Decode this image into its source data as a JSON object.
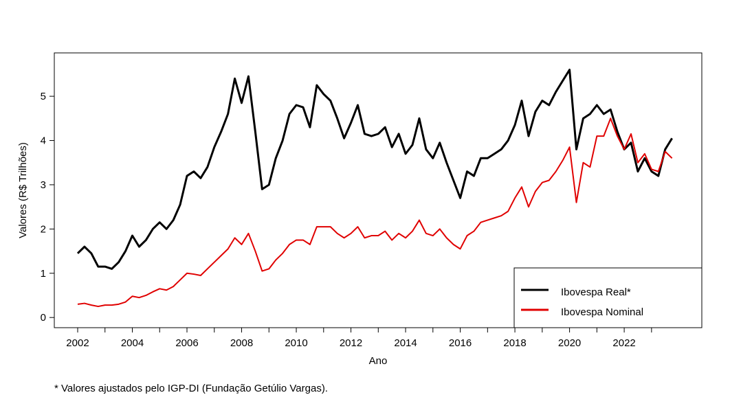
{
  "chart_data": {
    "type": "line",
    "x_label": "Ano",
    "y_label": "Valores (R$ Trilhões)",
    "footnote": "* Valores ajustados pelo IGP-DI (Fundação Getúlio Vargas).",
    "x": [
      2002,
      2002.25,
      2002.5,
      2002.75,
      2003,
      2003.25,
      2003.5,
      2003.75,
      2004,
      2004.25,
      2004.5,
      2004.75,
      2005,
      2005.25,
      2005.5,
      2005.75,
      2006,
      2006.25,
      2006.5,
      2006.75,
      2007,
      2007.25,
      2007.5,
      2007.75,
      2008,
      2008.25,
      2008.5,
      2008.75,
      2009,
      2009.25,
      2009.5,
      2009.75,
      2010,
      2010.25,
      2010.5,
      2010.75,
      2011,
      2011.25,
      2011.5,
      2011.75,
      2012,
      2012.25,
      2012.5,
      2012.75,
      2013,
      2013.25,
      2013.5,
      2013.75,
      2014,
      2014.25,
      2014.5,
      2014.75,
      2015,
      2015.25,
      2015.5,
      2015.75,
      2016,
      2016.25,
      2016.5,
      2016.75,
      2017,
      2017.25,
      2017.5,
      2017.75,
      2018,
      2018.25,
      2018.5,
      2018.75,
      2019,
      2019.25,
      2019.5,
      2019.75,
      2020,
      2020.25,
      2020.5,
      2020.75,
      2021,
      2021.25,
      2021.5,
      2021.75,
      2022,
      2022.25,
      2022.5,
      2022.75,
      2023,
      2023.25,
      2023.5,
      2023.75
    ],
    "series": [
      {
        "name": "Ibovespa Real*",
        "color": "#000000",
        "width": 3,
        "values": [
          1.45,
          1.6,
          1.45,
          1.15,
          1.15,
          1.1,
          1.25,
          1.5,
          1.85,
          1.6,
          1.75,
          2.0,
          2.15,
          2.0,
          2.2,
          2.55,
          3.2,
          3.3,
          3.15,
          3.4,
          3.85,
          4.2,
          4.6,
          5.4,
          4.85,
          5.45,
          4.2,
          2.9,
          3.0,
          3.6,
          4.0,
          4.6,
          4.8,
          4.75,
          4.3,
          5.25,
          5.05,
          4.9,
          4.5,
          4.05,
          4.4,
          4.8,
          4.15,
          4.1,
          4.15,
          4.3,
          3.85,
          4.15,
          3.7,
          3.9,
          4.5,
          3.8,
          3.6,
          3.95,
          3.5,
          3.1,
          2.7,
          3.3,
          3.2,
          3.6,
          3.6,
          3.7,
          3.8,
          4.0,
          4.35,
          4.9,
          4.1,
          4.65,
          4.9,
          4.8,
          5.1,
          5.35,
          5.6,
          3.8,
          4.5,
          4.6,
          4.8,
          4.6,
          4.7,
          4.2,
          3.8,
          3.95,
          3.3,
          3.6,
          3.3,
          3.2,
          3.8,
          4.05
        ]
      },
      {
        "name": "Ibovespa Nominal",
        "color": "#e00000",
        "width": 2,
        "values": [
          0.3,
          0.32,
          0.28,
          0.25,
          0.28,
          0.28,
          0.3,
          0.35,
          0.48,
          0.45,
          0.5,
          0.58,
          0.65,
          0.62,
          0.7,
          0.85,
          1.0,
          0.98,
          0.95,
          1.1,
          1.25,
          1.4,
          1.55,
          1.8,
          1.65,
          1.9,
          1.5,
          1.05,
          1.1,
          1.3,
          1.45,
          1.65,
          1.75,
          1.75,
          1.65,
          2.05,
          2.05,
          2.05,
          1.9,
          1.8,
          1.9,
          2.05,
          1.8,
          1.85,
          1.85,
          1.95,
          1.75,
          1.9,
          1.8,
          1.95,
          2.2,
          1.9,
          1.85,
          2.0,
          1.8,
          1.65,
          1.55,
          1.85,
          1.95,
          2.15,
          2.2,
          2.25,
          2.3,
          2.4,
          2.7,
          2.95,
          2.5,
          2.85,
          3.05,
          3.1,
          3.3,
          3.55,
          3.85,
          2.6,
          3.5,
          3.4,
          4.1,
          4.1,
          4.5,
          4.1,
          3.8,
          4.15,
          3.5,
          3.7,
          3.35,
          3.3,
          3.75,
          3.6
        ]
      }
    ],
    "xlim": [
      2001.145,
      2024.84
    ],
    "xticks": [
      2002,
      2004,
      2006,
      2008,
      2010,
      2012,
      2014,
      2016,
      2018,
      2020,
      2022
    ],
    "xminor_ticks": [
      2003,
      2005,
      2007,
      2009,
      2011,
      2013,
      2015,
      2017,
      2019,
      2021,
      2023
    ],
    "ylim": [
      -0.23,
      5.98
    ],
    "yticks": [
      0,
      1,
      2,
      3,
      4,
      5
    ],
    "legend": "bottom-right"
  }
}
